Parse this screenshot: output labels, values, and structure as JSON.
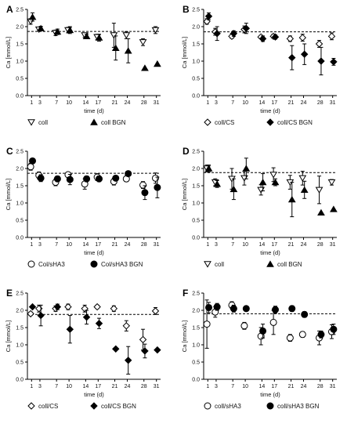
{
  "chart_data": [
    {
      "panel": "A",
      "type": "scatter",
      "xlabel": "time (d)",
      "ylabel": "Ca [mmol/L]",
      "xticks": [
        1,
        3,
        7,
        10,
        14,
        17,
        21,
        24,
        28,
        31
      ],
      "yticks": [
        "0.0",
        "0.5",
        "1.0",
        "1.5",
        "2.0",
        "2.5"
      ],
      "ylim": [
        0,
        2.5
      ],
      "reference_line": 1.86,
      "series": [
        {
          "name": "coll",
          "marker": "triangle-down-open",
          "x": [
            1,
            3,
            7,
            10,
            14,
            17,
            21,
            24,
            28,
            31
          ],
          "y": [
            2.15,
            1.92,
            1.82,
            1.9,
            1.75,
            1.7,
            1.75,
            1.75,
            1.55,
            1.9
          ],
          "err": [
            0.08,
            0.05,
            0.08,
            0.08,
            0.06,
            0.08,
            0.35,
            0.1,
            0.1,
            0.1
          ]
        },
        {
          "name": "coll BGN",
          "marker": "triangle-up-filled",
          "x": [
            1,
            3,
            7,
            10,
            14,
            17,
            21,
            24,
            28,
            31
          ],
          "y": [
            2.28,
            1.95,
            1.85,
            1.9,
            1.72,
            1.68,
            1.38,
            1.3,
            0.8,
            0.92
          ],
          "err": [
            0.12,
            0.06,
            0.08,
            0.1,
            0.06,
            0.1,
            0.35,
            0.35,
            0,
            0
          ]
        }
      ]
    },
    {
      "panel": "B",
      "type": "scatter",
      "xlabel": "time (d)",
      "ylabel": "Ca [mmol/L]",
      "xticks": [
        1,
        3,
        7,
        10,
        14,
        17,
        21,
        24,
        28,
        31
      ],
      "yticks": [
        "0.0",
        "0.5",
        "1.0",
        "1.5",
        "2.0",
        "2.5"
      ],
      "ylim": [
        0,
        2.5
      ],
      "reference_line": 1.85,
      "series": [
        {
          "name": "coll/CS",
          "marker": "diamond-open",
          "x": [
            1,
            3,
            7,
            10,
            14,
            17,
            21,
            24,
            28,
            31
          ],
          "y": [
            2.15,
            1.85,
            1.72,
            1.92,
            1.7,
            1.72,
            1.65,
            1.68,
            1.5,
            1.72
          ],
          "err": [
            0.08,
            0.1,
            0.06,
            0.1,
            0.05,
            0.06,
            0.08,
            0.1,
            0.1,
            0.1
          ]
        },
        {
          "name": "coll/CS BGN",
          "marker": "diamond-filled",
          "x": [
            1,
            3,
            7,
            10,
            14,
            17,
            21,
            24,
            28,
            31
          ],
          "y": [
            2.3,
            1.8,
            1.8,
            1.95,
            1.65,
            1.7,
            1.1,
            1.2,
            1.0,
            0.98
          ],
          "err": [
            0.1,
            0.2,
            0.08,
            0.15,
            0.08,
            0.06,
            0.35,
            0.3,
            0.4,
            0.1
          ]
        }
      ]
    },
    {
      "panel": "C",
      "type": "scatter",
      "xlabel": "time (d)",
      "ylabel": "Ca [mmol/L]",
      "xticks": [
        1,
        3,
        7,
        10,
        14,
        17,
        21,
        24,
        28,
        31
      ],
      "yticks": [
        "0.0",
        "0.5",
        "1.0",
        "1.5",
        "2.0",
        "2.5"
      ],
      "ylim": [
        0,
        2.5
      ],
      "reference_line": 1.86,
      "series": [
        {
          "name": "Col/sHA3",
          "marker": "circle-open",
          "x": [
            1,
            3,
            7,
            10,
            14,
            17,
            21,
            24,
            28,
            31
          ],
          "y": [
            2.05,
            1.8,
            1.6,
            1.82,
            1.55,
            1.75,
            1.62,
            1.7,
            1.52,
            1.72
          ],
          "err": [
            0.1,
            0.1,
            0.1,
            0.05,
            0.15,
            0.1,
            0.1,
            0.08,
            0.1,
            0.15
          ]
        },
        {
          "name": "Col/sHA3 BGN",
          "marker": "circle-filled",
          "x": [
            1,
            3,
            7,
            10,
            14,
            17,
            21,
            24,
            28,
            31
          ],
          "y": [
            2.22,
            1.72,
            1.7,
            1.68,
            1.7,
            1.7,
            1.72,
            1.85,
            1.3,
            1.45
          ],
          "err": [
            0.06,
            0.1,
            0.08,
            0.15,
            0.08,
            0.08,
            0.06,
            0.05,
            0.2,
            0.3
          ]
        }
      ]
    },
    {
      "panel": "D",
      "type": "scatter",
      "xlabel": "time (d)",
      "ylabel": "Ca [mmol/L]",
      "xticks": [
        1,
        3,
        7,
        10,
        14,
        17,
        21,
        24,
        28,
        31
      ],
      "yticks": [
        "0.0",
        "0.5",
        "1.0",
        "1.5",
        "2.0",
        "2.5"
      ],
      "ylim": [
        0,
        2.5
      ],
      "reference_line": 1.88,
      "series": [
        {
          "name": "coll",
          "marker": "triangle-down-open",
          "x": [
            1,
            3,
            7,
            10,
            14,
            17,
            21,
            24,
            28,
            31
          ],
          "y": [
            2.0,
            1.6,
            1.7,
            1.72,
            1.38,
            1.82,
            1.6,
            1.72,
            1.38,
            1.6
          ],
          "err": [
            0.1,
            0.1,
            0.3,
            0.2,
            0.15,
            0.2,
            0.2,
            0.2,
            0.4,
            0.08
          ]
        },
        {
          "name": "coll BGN",
          "marker": "triangle-up-filled",
          "x": [
            1,
            3,
            7,
            10,
            14,
            17,
            21,
            24,
            28,
            31
          ],
          "y": [
            2.0,
            1.55,
            1.4,
            2.0,
            1.6,
            1.6,
            1.1,
            1.38,
            0.72,
            0.82
          ],
          "err": [
            0.1,
            0.1,
            0.3,
            0.3,
            0.25,
            0.1,
            0.5,
            0.25,
            0,
            0
          ]
        }
      ]
    },
    {
      "panel": "E",
      "type": "scatter",
      "xlabel": "time (d)",
      "ylabel": "Ca [mmol/L]",
      "xticks": [
        1,
        3,
        7,
        10,
        14,
        17,
        21,
        24,
        28,
        31
      ],
      "yticks": [
        "0.0",
        "0.5",
        "1.0",
        "1.5",
        "2.0",
        "2.5"
      ],
      "ylim": [
        0,
        2.5
      ],
      "reference_line": 1.88,
      "series": [
        {
          "name": "coll/CS",
          "marker": "diamond-open",
          "x": [
            1,
            3,
            7,
            10,
            14,
            17,
            21,
            24,
            28,
            31
          ],
          "y": [
            1.9,
            2.05,
            2.05,
            2.1,
            2.05,
            2.1,
            2.05,
            1.55,
            1.15,
            1.98
          ],
          "err": [
            0.05,
            0.1,
            0.08,
            0.08,
            0.1,
            0.05,
            0.08,
            0.15,
            0.3,
            0.1
          ]
        },
        {
          "name": "coll/CS BGN",
          "marker": "diamond-filled",
          "x": [
            1,
            3,
            7,
            10,
            14,
            17,
            21,
            24,
            28,
            31
          ],
          "y": [
            2.1,
            1.85,
            2.1,
            1.45,
            1.8,
            1.62,
            0.88,
            0.55,
            0.82,
            0.85
          ],
          "err": [
            0,
            0.3,
            0.08,
            0.4,
            0.2,
            0.15,
            0,
            0.4,
            0.2,
            0
          ]
        }
      ]
    },
    {
      "panel": "F",
      "type": "scatter",
      "xlabel": "time (d)",
      "ylabel": "Ca [mmol/L]",
      "xticks": [
        1,
        3,
        7,
        10,
        14,
        17,
        21,
        24,
        28,
        31
      ],
      "yticks": [
        "0.0",
        "0.5",
        "1.0",
        "1.5",
        "2.0",
        "2.5"
      ],
      "ylim": [
        0,
        2.5
      ],
      "reference_line": 1.9,
      "series": [
        {
          "name": "coll/sHA3",
          "marker": "circle-open",
          "x": [
            1,
            3,
            7,
            10,
            14,
            17,
            21,
            24,
            28,
            31
          ],
          "y": [
            1.6,
            1.95,
            2.15,
            1.55,
            1.25,
            1.65,
            1.2,
            1.3,
            1.2,
            1.38
          ],
          "err": [
            0.7,
            0.15,
            0.1,
            0.1,
            0.25,
            0.35,
            0.1,
            0.08,
            0.2,
            0.2
          ]
        },
        {
          "name": "coll/sHA3 BGN",
          "marker": "circle-filled",
          "x": [
            1,
            3,
            7,
            10,
            14,
            17,
            21,
            24,
            28,
            31
          ],
          "y": [
            2.08,
            2.1,
            2.05,
            2.05,
            1.4,
            2.02,
            2.05,
            1.88,
            1.3,
            1.45
          ],
          "err": [
            0.15,
            0.1,
            0.1,
            0.05,
            0.2,
            0.1,
            0.08,
            0.08,
            0.1,
            0.15
          ]
        }
      ]
    }
  ]
}
